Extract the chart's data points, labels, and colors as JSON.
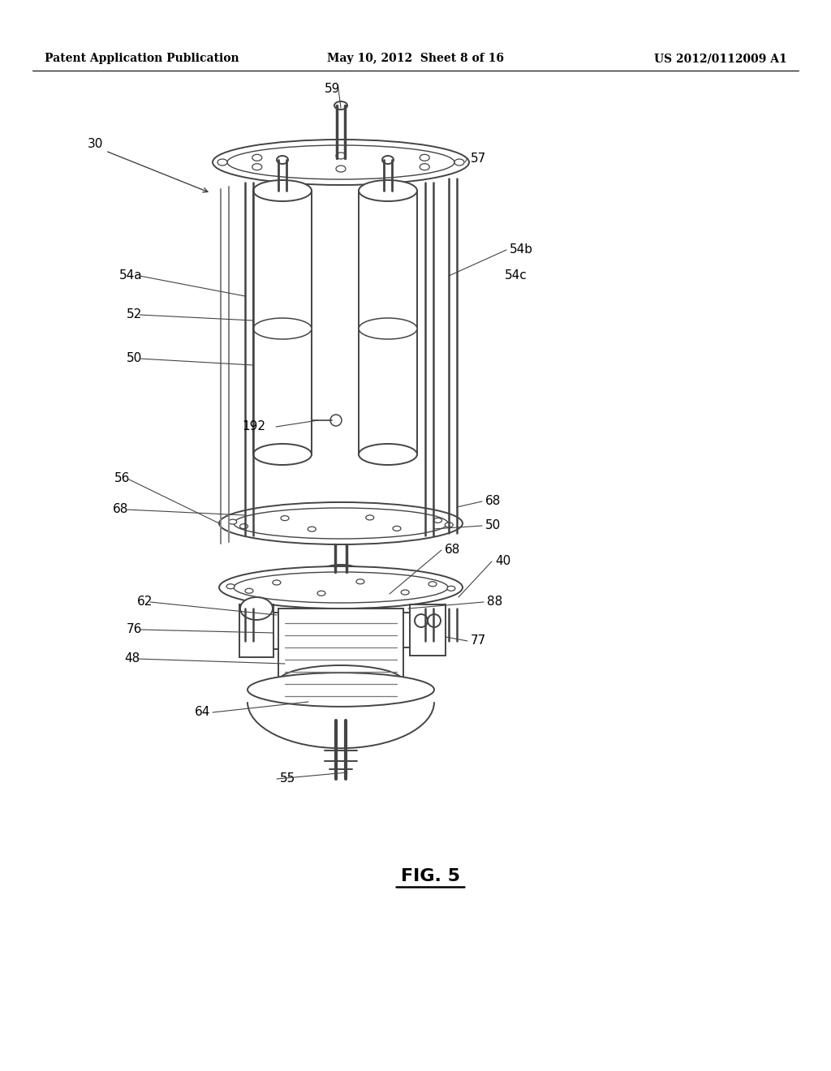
{
  "background_color": "#ffffff",
  "header_left": "Patent Application Publication",
  "header_mid": "May 10, 2012  Sheet 8 of 16",
  "header_right": "US 2012/0112009 A1",
  "figure_label": "FIG. 5",
  "gray": "#444444",
  "light_gray": "#888888"
}
